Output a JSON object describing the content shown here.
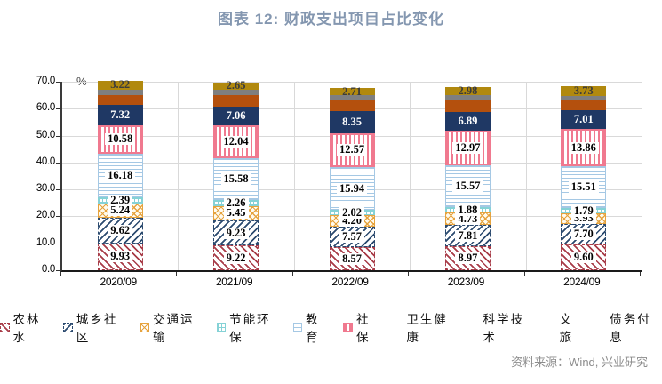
{
  "title": "图表 12: 财政支出项目占比变化",
  "y_axis_unit": "%",
  "source_note": "资料来源：Wind, 兴业研究",
  "colors": {
    "title_text": "#8497B0",
    "source_text": "#8C8C8C",
    "gridline": "#D9D9D9",
    "axis": "#333333"
  },
  "chart_data": {
    "type": "bar",
    "stacked": true,
    "title": "图表 12: 财政支出项目占比变化",
    "xlabel": "",
    "ylabel": "%",
    "ylim": [
      0,
      70
    ],
    "ytick_step": 10,
    "ytick_labels": [
      "0.0",
      "10.0",
      "20.0",
      "30.0",
      "40.0",
      "50.0",
      "60.0",
      "70.0"
    ],
    "grid": "horizontal gridlines + vertical category separators",
    "legend_position": "bottom",
    "categories": [
      "2020/09",
      "2021/09",
      "2022/09",
      "2023/09",
      "2024/09"
    ],
    "series": [
      {
        "name": "农林水",
        "pattern": "diag-down",
        "color": "#A83C48",
        "show_labels": true,
        "label_style": "boxed",
        "values": [
          9.93,
          9.22,
          8.57,
          8.97,
          9.6
        ]
      },
      {
        "name": "城乡社区",
        "pattern": "diag-up",
        "color": "#2B4A6F",
        "show_labels": true,
        "label_style": "boxed",
        "values": [
          9.62,
          9.23,
          7.57,
          7.81,
          7.7
        ]
      },
      {
        "name": "交通运输",
        "pattern": "crosshatch",
        "color": "#E6A33E",
        "show_labels": true,
        "label_style": "boxed",
        "values": [
          5.24,
          5.45,
          4.2,
          4.73,
          3.93
        ]
      },
      {
        "name": "节能环保",
        "pattern": "grid",
        "color": "#85D2D6",
        "show_labels": true,
        "label_style": "boxed",
        "values": [
          2.39,
          2.26,
          2.02,
          1.88,
          1.79
        ]
      },
      {
        "name": "教育",
        "pattern": "hlines",
        "color": "#A5C8E4",
        "show_labels": true,
        "label_style": "boxed",
        "values": [
          16.18,
          15.58,
          15.94,
          15.57,
          15.51
        ]
      },
      {
        "name": "社保",
        "pattern": "vstripes",
        "color": "#F0798F",
        "show_labels": true,
        "label_style": "boxed",
        "values": [
          10.58,
          12.04,
          12.57,
          12.97,
          13.86
        ]
      },
      {
        "name": "卫生健康",
        "pattern": "solid",
        "color": "#1F3864",
        "show_labels": true,
        "label_style": "white",
        "values": [
          7.32,
          7.06,
          8.35,
          6.89,
          7.01
        ]
      },
      {
        "name": "科学技术",
        "pattern": "solid",
        "color": "#B4500D",
        "show_labels": false,
        "label_style": "plain",
        "estimated": true,
        "values": [
          3.9,
          4.3,
          4.2,
          4.6,
          4.0
        ]
      },
      {
        "name": "文旅",
        "pattern": "solid",
        "color": "#7F7F7F",
        "show_labels": false,
        "label_style": "plain",
        "estimated": true,
        "values": [
          2.0,
          1.9,
          1.5,
          1.6,
          1.3
        ]
      },
      {
        "name": "债务付息",
        "pattern": "solid",
        "color": "#B1890E",
        "show_labels": true,
        "label_style": "plain",
        "values": [
          3.22,
          2.65,
          2.71,
          2.98,
          3.73
        ]
      }
    ]
  }
}
